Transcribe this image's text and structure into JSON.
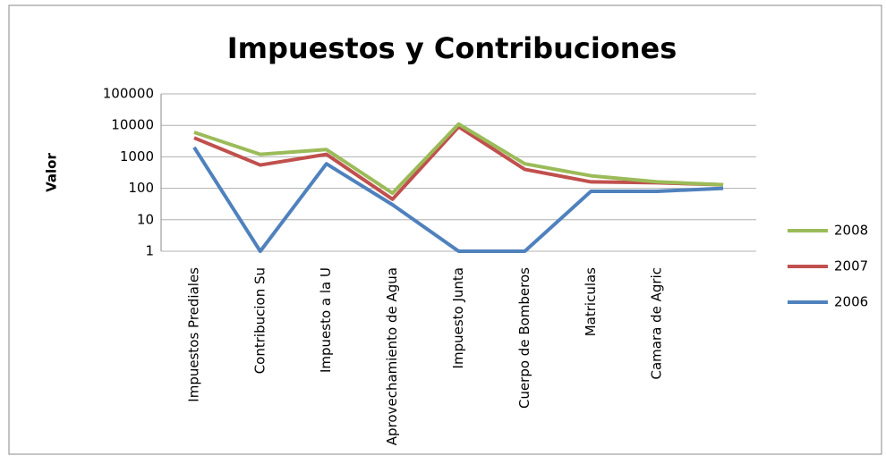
{
  "chart_data": {
    "type": "line",
    "title": "Impuestos y Contribuciones",
    "y_label": "Valor",
    "categories": [
      "Impuestos Prediales",
      "Contribucion Su",
      "Impuesto a la U",
      "Aprovechamiento de Agua",
      "Impuesto Junta",
      "Cuerpo de Bomberos",
      "Matriculas",
      "Camara de Agric",
      null
    ],
    "series": [
      {
        "name": "2008",
        "color": "#9bbb59",
        "values": [
          6000,
          1200,
          1700,
          70,
          11000,
          600,
          250,
          160,
          130
        ]
      },
      {
        "name": "2007",
        "color": "#c0504d",
        "values": [
          4000,
          550,
          1200,
          45,
          9000,
          400,
          160,
          150,
          130
        ]
      },
      {
        "name": "2006",
        "color": "#4f81bd",
        "values": [
          2000,
          1,
          600,
          30,
          1,
          1,
          80,
          80,
          100
        ]
      }
    ],
    "ylim": [
      1,
      100000
    ],
    "yticks": [
      1,
      10,
      100,
      1000,
      10000,
      100000
    ],
    "log_y": true,
    "grid": true,
    "legend": "right"
  }
}
